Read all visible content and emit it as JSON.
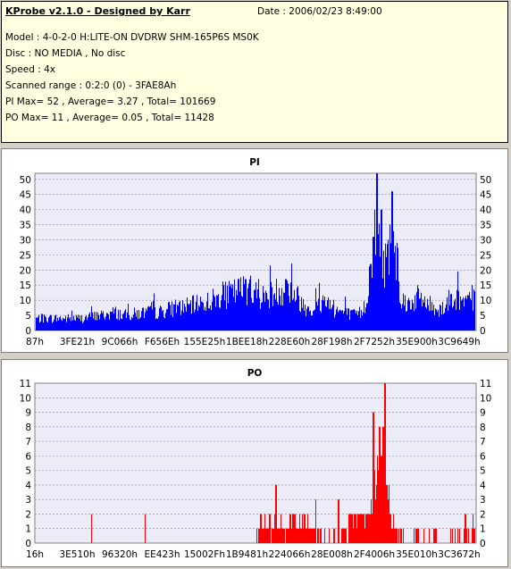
{
  "info": {
    "title": "KProbe v2.1.0 - Designed by Karr",
    "date": "Date : 2006/02/23 8:49:00",
    "model": "Model : 4-0-2-0 H:LITE-ON DVDRW SHM-165P6S MS0K",
    "disc": "Disc : NO MEDIA , No disc",
    "speed": "Speed : 4x",
    "range": "Scanned range : 0:2:0 (0) - 3FAE8Ah",
    "pi_summary": "PI Max= 52 , Average= 3.27 , Total= 101669",
    "po_summary": "PO Max= 11 , Average= 0.05 , Total= 11428"
  },
  "chart_data": [
    {
      "type": "bar",
      "title": "PI",
      "color": "#0000ff",
      "ylim": [
        0,
        52
      ],
      "yticks": [
        0,
        5,
        10,
        15,
        20,
        25,
        30,
        35,
        40,
        45,
        50
      ],
      "xticks": [
        "87h",
        "3FE21h",
        "9C066h",
        "F656Eh",
        "155E25h",
        "1BEE18h",
        "228E60h",
        "28F198h",
        "2F7252h",
        "35E900h",
        "3C9649h"
      ],
      "profile": [
        [
          0,
          4
        ],
        [
          5,
          4
        ],
        [
          10,
          4
        ],
        [
          15,
          5
        ],
        [
          18,
          6
        ],
        [
          20,
          5
        ],
        [
          25,
          6
        ],
        [
          28,
          6
        ],
        [
          30,
          7
        ],
        [
          35,
          8
        ],
        [
          40,
          10
        ],
        [
          44,
          12
        ],
        [
          46,
          13
        ],
        [
          48,
          14
        ],
        [
          50,
          12
        ],
        [
          52,
          11
        ],
        [
          55,
          13
        ],
        [
          57,
          14
        ],
        [
          59,
          12
        ],
        [
          61,
          8
        ],
        [
          63,
          7
        ],
        [
          65,
          9
        ],
        [
          66,
          11
        ],
        [
          67,
          8
        ],
        [
          68,
          7
        ],
        [
          70,
          6
        ],
        [
          72,
          5
        ],
        [
          74,
          6
        ],
        [
          75,
          9
        ],
        [
          76,
          20
        ],
        [
          77,
          30
        ],
        [
          78,
          35
        ],
        [
          79,
          22
        ],
        [
          80,
          25
        ],
        [
          81,
          35
        ],
        [
          82,
          27
        ],
        [
          83,
          10
        ],
        [
          85,
          9
        ],
        [
          87,
          11
        ],
        [
          89,
          9
        ],
        [
          90,
          8
        ],
        [
          92,
          7
        ],
        [
          94,
          10
        ],
        [
          95,
          11
        ],
        [
          97,
          9
        ],
        [
          100,
          10
        ]
      ],
      "peaks": [
        {
          "x": 77.6,
          "value": 52
        },
        {
          "x": 81.0,
          "value": 46
        },
        {
          "x": 78.6,
          "value": 40
        },
        {
          "x": 76.8,
          "value": 31
        },
        {
          "x": 50.6,
          "value": 17
        },
        {
          "x": 47.6,
          "value": 17
        },
        {
          "x": 56.8,
          "value": 17
        },
        {
          "x": 63.6,
          "value": 14
        },
        {
          "x": 99.2,
          "value": 15
        },
        {
          "x": 12.6,
          "value": 8
        }
      ]
    },
    {
      "type": "bar",
      "title": "PO",
      "color": "#ff0000",
      "ylim": [
        0,
        11
      ],
      "yticks": [
        0,
        1,
        2,
        3,
        4,
        5,
        6,
        7,
        8,
        9,
        10,
        11
      ],
      "xticks": [
        "16h",
        "3E510h",
        "96320h",
        "EE423h",
        "15002Fh",
        "1B9481h",
        "224066h",
        "28E008h",
        "2F4006h",
        "35E010h",
        "3C3672h"
      ],
      "profile": [
        [
          0,
          0.1
        ],
        [
          50,
          0.2
        ],
        [
          51,
          1.4
        ],
        [
          54,
          1.6
        ],
        [
          56,
          1.2
        ],
        [
          60,
          1.4
        ],
        [
          64,
          1.2
        ],
        [
          65,
          0.4
        ],
        [
          69,
          0.4
        ],
        [
          70,
          1.2
        ],
        [
          73,
          1.6
        ],
        [
          75,
          2.4
        ],
        [
          77,
          4.0
        ],
        [
          78,
          4.5
        ],
        [
          79,
          5.0
        ],
        [
          80,
          3.0
        ],
        [
          81,
          1.5
        ],
        [
          82,
          0.6
        ],
        [
          90,
          0.5
        ],
        [
          100,
          0.6
        ]
      ],
      "peaks": [
        {
          "x": 79.4,
          "value": 11
        },
        {
          "x": 76.8,
          "value": 9
        },
        {
          "x": 78.2,
          "value": 8
        },
        {
          "x": 79.0,
          "value": 8
        },
        {
          "x": 54.5,
          "value": 4
        },
        {
          "x": 68.8,
          "value": 3
        },
        {
          "x": 63.6,
          "value": 3
        },
        {
          "x": 51.0,
          "value": 2
        },
        {
          "x": 12.6,
          "value": 2
        },
        {
          "x": 24.8,
          "value": 2
        },
        {
          "x": 97.6,
          "value": 2
        },
        {
          "x": 99.4,
          "value": 2
        }
      ]
    }
  ]
}
